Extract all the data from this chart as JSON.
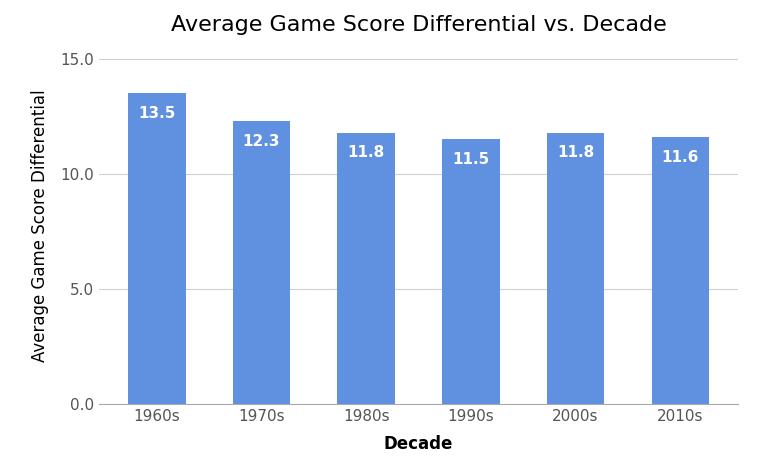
{
  "categories": [
    "1960s",
    "1970s",
    "1980s",
    "1990s",
    "2000s",
    "2010s"
  ],
  "values": [
    13.5,
    12.3,
    11.8,
    11.5,
    11.8,
    11.6
  ],
  "bar_color": "#6090E0",
  "title": "Average Game Score Differential vs. Decade",
  "xlabel": "Decade",
  "ylabel": "Average Game Score Differential",
  "ylim": [
    0,
    15.5
  ],
  "yticks": [
    0.0,
    5.0,
    10.0,
    15.0
  ],
  "title_fontsize": 16,
  "axis_label_fontsize": 12,
  "tick_fontsize": 11,
  "label_fontsize": 11,
  "background_color": "#ffffff",
  "grid_color": "#d0d0d0",
  "bar_label_color": "#ffffff",
  "bar_width": 0.55
}
